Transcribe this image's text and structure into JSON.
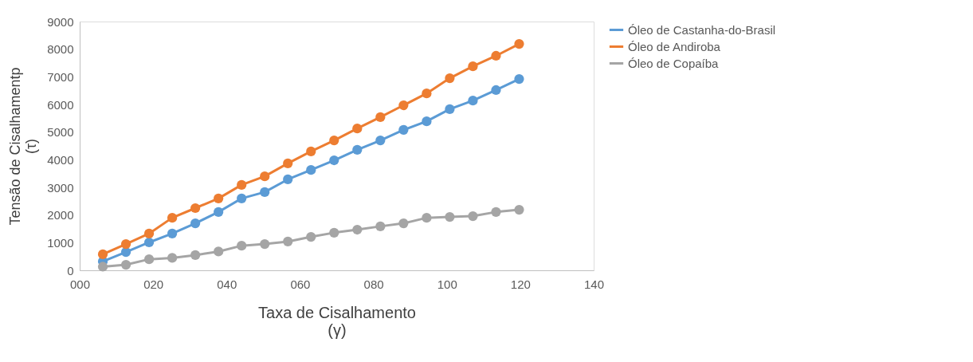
{
  "chart_data": {
    "type": "line",
    "xlabel": "Taxa de Cisalhamento\n(γ)",
    "ylabel": "Tensão de Cisalhamentp\n(τ)",
    "x": [
      6.3,
      12.6,
      18.9,
      25.2,
      31.5,
      37.8,
      44.1,
      50.4,
      56.7,
      63.0,
      69.3,
      75.6,
      81.9,
      88.2,
      94.5,
      100.8,
      107.1,
      113.4,
      119.7
    ],
    "series": [
      {
        "name": "Óleo de Castanha-do-Brasil",
        "color": "#5b9bd5",
        "values": [
          320,
          660,
          1010,
          1330,
          1700,
          2110,
          2600,
          2830,
          3290,
          3630,
          3980,
          4360,
          4700,
          5080,
          5390,
          5830,
          6140,
          6520,
          6920
        ]
      },
      {
        "name": "Óleo de Andiroba",
        "color": "#ed7d31",
        "values": [
          580,
          950,
          1330,
          1900,
          2250,
          2600,
          3090,
          3400,
          3870,
          4300,
          4700,
          5130,
          5540,
          5970,
          6400,
          6950,
          7380,
          7760,
          8190
        ]
      },
      {
        "name": "Óleo de Copaíba",
        "color": "#a5a5a5",
        "values": [
          130,
          200,
          400,
          450,
          550,
          680,
          890,
          950,
          1040,
          1210,
          1360,
          1470,
          1590,
          1700,
          1900,
          1930,
          1960,
          2110,
          2190
        ]
      }
    ],
    "xlim": [
      0,
      140
    ],
    "xticks": [
      {
        "value": 0,
        "label": "000"
      },
      {
        "value": 20,
        "label": "020"
      },
      {
        "value": 40,
        "label": "040"
      },
      {
        "value": 60,
        "label": "060"
      },
      {
        "value": 80,
        "label": "080"
      },
      100,
      120,
      140
    ],
    "ylim": [
      0,
      9000
    ],
    "yticks": [
      0,
      1000,
      2000,
      3000,
      4000,
      5000,
      6000,
      7000,
      8000,
      9000
    ],
    "grid": false,
    "legend": "right",
    "marker": "circle",
    "line_style": "solid"
  }
}
